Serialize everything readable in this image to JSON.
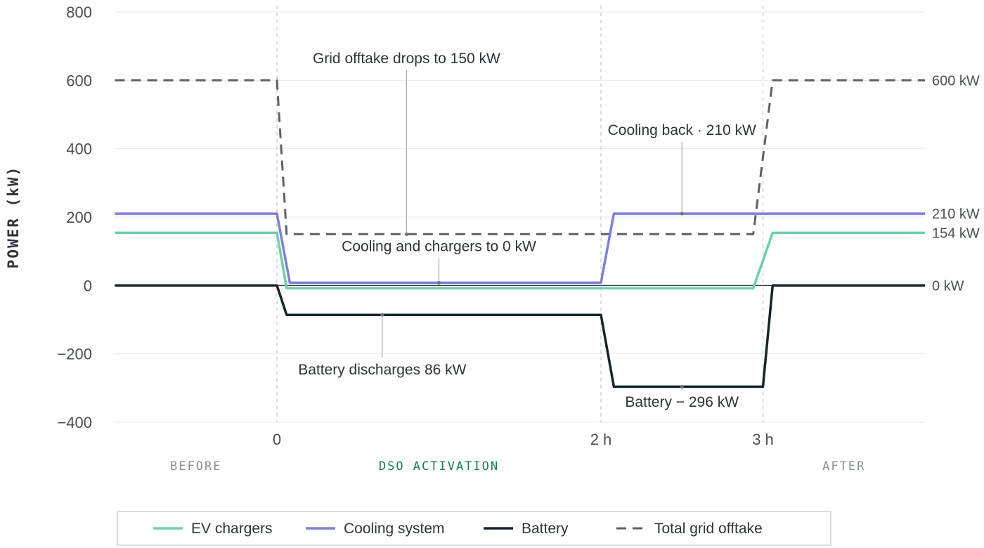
{
  "chart_data": {
    "type": "line",
    "title": "",
    "xlabel": "",
    "ylabel": "POWER (kW)",
    "ylim": [
      -400,
      800
    ],
    "y_ticks": [
      800,
      600,
      400,
      200,
      0,
      -200,
      -400
    ],
    "y_tick_labels": [
      "800",
      "600",
      "400",
      "200",
      "0",
      "−200",
      "−400"
    ],
    "x_ticks": [
      {
        "x": 0,
        "label": "0"
      },
      {
        "x": 2,
        "label": "2 h"
      },
      {
        "x": 3,
        "label": "3 h"
      }
    ],
    "xlim": [
      -1,
      4
    ],
    "grid": true,
    "legend_position": "bottom",
    "phases": [
      {
        "label": "BEFORE",
        "x": -0.5,
        "color": "#8a8f94"
      },
      {
        "label": "DSO ACTIVATION",
        "x": 1,
        "color": "#1a7a5e"
      },
      {
        "label": "AFTER",
        "x": 3.5,
        "color": "#8a8f94"
      }
    ],
    "series": [
      {
        "name": "EV chargers",
        "color": "#6dcfac",
        "dashed": false,
        "points": [
          [
            -1,
            154
          ],
          [
            0,
            154
          ],
          [
            0.06,
            -8
          ],
          [
            2.94,
            -8
          ],
          [
            3.06,
            154
          ],
          [
            4,
            154
          ]
        ]
      },
      {
        "name": "Cooling system",
        "color": "#8080d4",
        "dashed": false,
        "points": [
          [
            -1,
            210
          ],
          [
            0,
            210
          ],
          [
            0.08,
            8
          ],
          [
            2,
            8
          ],
          [
            2.08,
            210
          ],
          [
            4,
            210
          ]
        ]
      },
      {
        "name": "Battery",
        "color": "#17252a",
        "dashed": false,
        "points": [
          [
            -1,
            0
          ],
          [
            0,
            0
          ],
          [
            0.06,
            -86
          ],
          [
            2,
            -86
          ],
          [
            2.08,
            -296
          ],
          [
            3,
            -296
          ],
          [
            3.06,
            0
          ],
          [
            4,
            0
          ]
        ]
      },
      {
        "name": "Total grid offtake",
        "color": "#5c6166",
        "dashed": true,
        "points": [
          [
            -1,
            600
          ],
          [
            0,
            600
          ],
          [
            0.06,
            150
          ],
          [
            2.94,
            150
          ],
          [
            3.06,
            600
          ],
          [
            4,
            600
          ]
        ]
      }
    ],
    "end_labels": [
      {
        "text": "600 kW",
        "y": 600
      },
      {
        "text": "210 kW",
        "y": 210
      },
      {
        "text": "154 kW",
        "y": 154
      },
      {
        "text": "0 kW",
        "y": 0
      }
    ],
    "annotations": [
      {
        "text": "Grid offtake drops to 150 kW",
        "x": 0.8,
        "y": 150,
        "text_y": 650
      },
      {
        "text": "Cooling back · 210 kW",
        "x": 2.5,
        "y": 210,
        "text_y": 440
      },
      {
        "text": "Cooling and chargers to 0 kW",
        "x": 1.0,
        "y": 8,
        "text_y": 100
      },
      {
        "text": "Battery discharges 86 kW",
        "x": 0.65,
        "y": -86,
        "text_y": -260
      },
      {
        "text": "Battery − 296 kW",
        "x": 2.5,
        "y": -296,
        "text_y": -355
      }
    ]
  }
}
